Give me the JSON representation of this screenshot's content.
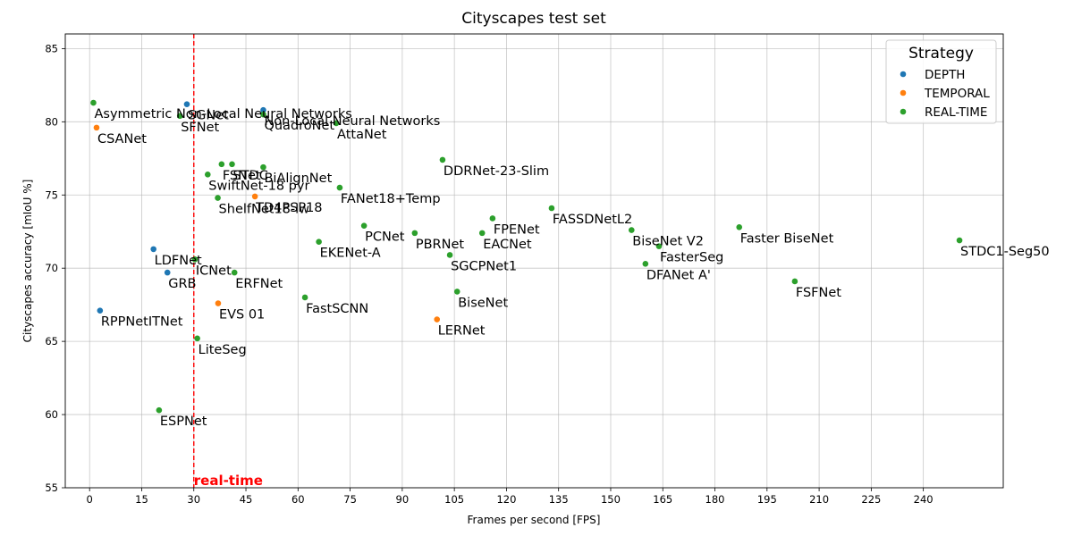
{
  "chart_data": {
    "type": "scatter",
    "title": "Cityscapes test set",
    "xlabel": "Frames per second [FPS]",
    "ylabel": "Cityscapes accuracy [mIoU %]",
    "xlim": [
      -7,
      263
    ],
    "ylim": [
      55,
      86
    ],
    "xticks": [
      0,
      15,
      30,
      45,
      60,
      75,
      90,
      105,
      120,
      135,
      150,
      165,
      180,
      195,
      210,
      225,
      240
    ],
    "yticks": [
      55,
      60,
      65,
      70,
      75,
      80,
      85
    ],
    "grid": true,
    "legend": {
      "title": "Strategy",
      "placement": "top-right",
      "entries": [
        {
          "name": "DEPTH",
          "color": "#1f77b4"
        },
        {
          "name": "TEMPORAL",
          "color": "#ff7f0e"
        },
        {
          "name": "REAL-TIME",
          "color": "#2ca02c"
        }
      ]
    },
    "threshold": {
      "x": 30,
      "label": "real-time",
      "color": "#ff0000"
    },
    "series": [
      {
        "name": "DEPTH",
        "color": "#1f77b4",
        "points": [
          {
            "label": "SGNet",
            "x": 28,
            "y": 81.2
          },
          {
            "label": "Non-Local Neural Networks",
            "x": 50,
            "y": 80.8
          },
          {
            "label": "LDFNet",
            "x": 18.4,
            "y": 71.3
          },
          {
            "label": "GRB",
            "x": 22.4,
            "y": 69.7
          },
          {
            "label": "RPPNetITNet",
            "x": 3,
            "y": 67.1
          }
        ]
      },
      {
        "name": "TEMPORAL",
        "color": "#ff7f0e",
        "points": [
          {
            "label": "CSANet",
            "x": 2,
            "y": 79.6
          },
          {
            "label": "TD4PSP18",
            "x": 47.6,
            "y": 74.9
          },
          {
            "label": "EVS 01",
            "x": 37,
            "y": 67.6
          },
          {
            "label": "LERNet",
            "x": 100,
            "y": 66.5
          }
        ]
      },
      {
        "name": "REAL-TIME",
        "color": "#2ca02c",
        "points": [
          {
            "label": "Asymmetric Non-Local Neural Networks",
            "x": 1.1,
            "y": 81.3
          },
          {
            "label": "SFNet",
            "x": 26,
            "y": 80.4
          },
          {
            "label": "QuadroNet",
            "x": 50,
            "y": 80.5
          },
          {
            "label": "AttaNet",
            "x": 71,
            "y": 79.9
          },
          {
            "label": "FSNet",
            "x": 38,
            "y": 77.1
          },
          {
            "label": "STDC",
            "x": 41,
            "y": 77.1
          },
          {
            "label": "BiAlignNet",
            "x": 50,
            "y": 76.9
          },
          {
            "label": "SwiftNet-18 pyr",
            "x": 34,
            "y": 76.4
          },
          {
            "label": "ShelfNet18-lw",
            "x": 36.9,
            "y": 74.8
          },
          {
            "label": "DDRNet-23-Slim",
            "x": 101.6,
            "y": 77.4
          },
          {
            "label": "FANet18+Temp",
            "x": 72,
            "y": 75.5
          },
          {
            "label": "PCNet",
            "x": 79,
            "y": 72.9
          },
          {
            "label": "PBRNet",
            "x": 93.6,
            "y": 72.4
          },
          {
            "label": "FPENet",
            "x": 116,
            "y": 73.4
          },
          {
            "label": "EACNet",
            "x": 113,
            "y": 72.4
          },
          {
            "label": "FASSDNetL2",
            "x": 133,
            "y": 74.1
          },
          {
            "label": "BiseNet V2",
            "x": 156,
            "y": 72.6
          },
          {
            "label": "FasterSeg",
            "x": 163.9,
            "y": 71.5
          },
          {
            "label": "Faster BiseNet",
            "x": 187,
            "y": 72.8
          },
          {
            "label": "STDC1-Seg50",
            "x": 250.4,
            "y": 71.9
          },
          {
            "label": "EKENet-A",
            "x": 66,
            "y": 71.8
          },
          {
            "label": "ICNet",
            "x": 30.3,
            "y": 70.6
          },
          {
            "label": "ERFNet",
            "x": 41.7,
            "y": 69.7
          },
          {
            "label": "SGCPNet1",
            "x": 103.7,
            "y": 70.9
          },
          {
            "label": "DFANet A'",
            "x": 160,
            "y": 70.3
          },
          {
            "label": "FSFNet",
            "x": 203,
            "y": 69.1
          },
          {
            "label": "FastSCNN",
            "x": 62,
            "y": 68
          },
          {
            "label": "BiseNet",
            "x": 105.8,
            "y": 68.4
          },
          {
            "label": "LiteSeg",
            "x": 31,
            "y": 65.2
          },
          {
            "label": "ESPNet",
            "x": 20,
            "y": 60.3
          }
        ]
      }
    ]
  }
}
